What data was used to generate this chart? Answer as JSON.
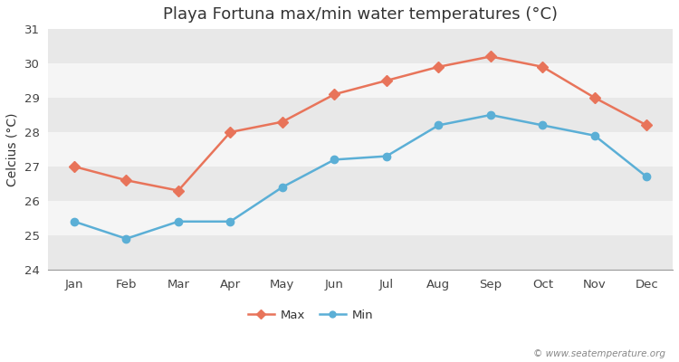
{
  "title": "Playa Fortuna max/min water temperatures (°C)",
  "ylabel": "Celcius (°C)",
  "months": [
    "Jan",
    "Feb",
    "Mar",
    "Apr",
    "May",
    "Jun",
    "Jul",
    "Aug",
    "Sep",
    "Oct",
    "Nov",
    "Dec"
  ],
  "max_values": [
    27.0,
    26.6,
    26.3,
    28.0,
    28.3,
    29.1,
    29.5,
    29.9,
    30.2,
    29.9,
    29.0,
    28.2
  ],
  "min_values": [
    25.4,
    24.9,
    25.4,
    25.4,
    26.4,
    27.2,
    27.3,
    28.2,
    28.5,
    28.2,
    27.9,
    26.7
  ],
  "max_color": "#e8745a",
  "min_color": "#5bafd6",
  "fig_bg_color": "#ffffff",
  "plot_bg_color": "#ffffff",
  "band_colors": [
    "#e8e8e8",
    "#f5f5f5"
  ],
  "grid_color": "#cccccc",
  "ylim": [
    24,
    31
  ],
  "yticks": [
    24,
    25,
    26,
    27,
    28,
    29,
    30,
    31
  ],
  "watermark": "© www.seatemperature.org",
  "legend_labels": [
    "Max",
    "Min"
  ],
  "title_fontsize": 13,
  "axis_fontsize": 10,
  "tick_fontsize": 9.5,
  "marker_size": 6,
  "line_width": 1.8
}
